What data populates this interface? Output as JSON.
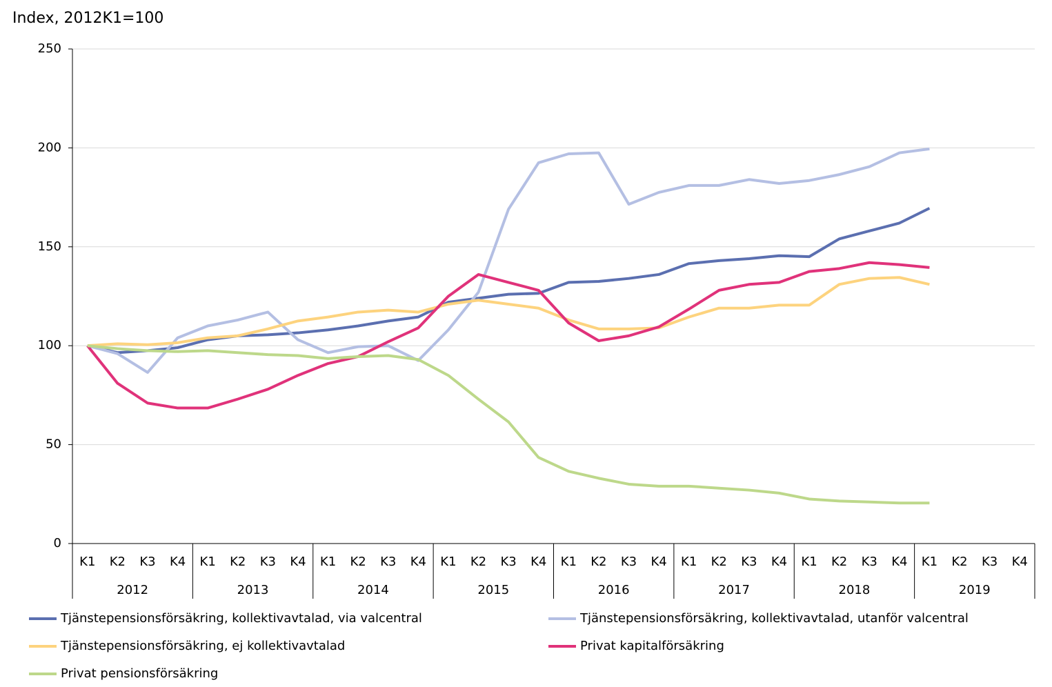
{
  "chart_data": {
    "type": "line",
    "title": "Index, 2012K1=100",
    "categories": [
      "K1",
      "K2",
      "K3",
      "K4",
      "K1",
      "K2",
      "K3",
      "K4",
      "K1",
      "K2",
      "K3",
      "K4",
      "K1",
      "K2",
      "K3",
      "K4",
      "K1",
      "K2",
      "K3",
      "K4",
      "K1",
      "K2",
      "K3",
      "K4",
      "K1",
      "K2",
      "K3",
      "K4",
      "K1",
      "K2",
      "K3",
      "K4"
    ],
    "category_groups": [
      "2012",
      "2013",
      "2014",
      "2015",
      "2016",
      "2017",
      "2018",
      "2019"
    ],
    "ylim": [
      0,
      250
    ],
    "yticks": [
      0,
      50,
      100,
      150,
      200,
      250
    ],
    "grid": true,
    "legend": "bottom",
    "series": [
      {
        "name": "Tjänstepensionsförsäkring, kollektivavtalad, via valcentral",
        "color": "#5b6fb0",
        "values": [
          100,
          96.5,
          97.5,
          99,
          103,
          105,
          105.5,
          106.5,
          108,
          110,
          112.5,
          114.5,
          122,
          124,
          126,
          126.5,
          132,
          132.5,
          134,
          136,
          141.5,
          143,
          144,
          145.5,
          145,
          154,
          158,
          162,
          169.5,
          null,
          null,
          null
        ]
      },
      {
        "name": "Tjänstepensionsförsäkring, kollektivavtalad, utanför valcentral",
        "color": "#b4bfe3",
        "values": [
          100,
          96,
          86.5,
          104,
          110,
          113,
          117,
          103,
          96.5,
          99.5,
          100,
          92.5,
          108,
          127,
          169,
          192.5,
          197,
          197.5,
          171.5,
          177.5,
          181,
          181,
          184,
          182,
          183.5,
          186.5,
          190.5,
          197.5,
          199.5,
          null,
          null,
          null
        ]
      },
      {
        "name": "Tjänstepensionsförsäkring, ej kollektivavtalad",
        "color": "#fdd37e",
        "values": [
          100,
          101,
          100.5,
          101.5,
          104,
          105,
          108.5,
          112.5,
          114.5,
          117,
          118,
          117,
          121,
          123,
          121,
          119,
          113,
          108.5,
          108.5,
          109,
          114.5,
          119,
          119,
          120.5,
          120.5,
          131,
          134,
          134.5,
          131,
          null,
          null,
          null
        ]
      },
      {
        "name": "Privat kapitalförsäkring",
        "color": "#e0327a",
        "values": [
          100,
          81,
          71,
          68.5,
          68.5,
          73,
          78,
          85,
          91,
          94.5,
          102,
          109,
          125,
          136,
          132,
          128,
          111.5,
          102.5,
          105,
          109.5,
          118.5,
          128,
          131,
          132,
          137.5,
          139,
          142,
          141,
          139.5,
          null,
          null,
          null
        ]
      },
      {
        "name": "Privat pensionsförsäkring",
        "color": "#bdd88a",
        "values": [
          100,
          98.5,
          97.5,
          97,
          97.5,
          96.5,
          95.5,
          95,
          93.5,
          94.5,
          95,
          93,
          85,
          73,
          61.5,
          43.5,
          36.5,
          33,
          30,
          29,
          29,
          28,
          27,
          25.5,
          22.5,
          21.5,
          21,
          20.5,
          20.5,
          null,
          null,
          null
        ]
      }
    ]
  }
}
